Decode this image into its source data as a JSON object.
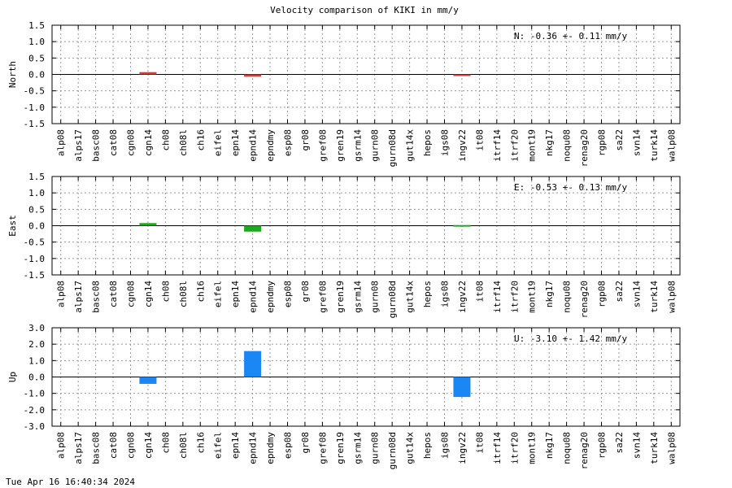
{
  "chart_data": [
    {
      "type": "bar",
      "title": "Velocity comparison of KIKI in mm/y",
      "ylabel": "North",
      "ylim": [
        -1.5,
        1.5
      ],
      "yticks": [
        "1.5",
        "1.0",
        "0.5",
        "0.0",
        "-0.5",
        "-1.0",
        "-1.5"
      ],
      "grid": true,
      "color": "#d43f3a",
      "annotation": "N:  -0.36 +-  0.11 mm/y",
      "categories": [
        "alp08",
        "alps17",
        "basc08",
        "cat08",
        "cgn08",
        "cgn14",
        "ch08",
        "ch08l",
        "ch16",
        "eifel",
        "epn14",
        "epnd14",
        "epndmy",
        "esp08",
        "gr08",
        "gref08",
        "gren19",
        "gsrm14",
        "gurn08",
        "gurn08d",
        "gut14x",
        "hepos",
        "igs08",
        "ingv22",
        "it08",
        "itrf14",
        "itrf20",
        "mont19",
        "nkg17",
        "noqu08",
        "renag20",
        "rgp08",
        "sa22",
        "svn14",
        "turk14",
        "walp08"
      ],
      "values": [
        null,
        null,
        null,
        null,
        null,
        0.07,
        null,
        null,
        null,
        null,
        null,
        -0.07,
        null,
        null,
        null,
        null,
        null,
        null,
        null,
        null,
        null,
        null,
        null,
        -0.03,
        null,
        null,
        null,
        null,
        null,
        null,
        null,
        null,
        null,
        null,
        null,
        null
      ]
    },
    {
      "type": "bar",
      "ylabel": "East",
      "ylim": [
        -1.5,
        1.5
      ],
      "yticks": [
        "1.5",
        "1.0",
        "0.5",
        "0.0",
        "-0.5",
        "-1.0",
        "-1.5"
      ],
      "grid": true,
      "color": "#1fa81f",
      "annotation": "E:  -0.53 +-  0.13 mm/y",
      "categories": [
        "alp08",
        "alps17",
        "basc08",
        "cat08",
        "cgn08",
        "cgn14",
        "ch08",
        "ch08l",
        "ch16",
        "eifel",
        "epn14",
        "epnd14",
        "epndmy",
        "esp08",
        "gr08",
        "gref08",
        "gren19",
        "gsrm14",
        "gurn08",
        "gurn08d",
        "gut14x",
        "hepos",
        "igs08",
        "ingv22",
        "it08",
        "itrf14",
        "itrf20",
        "mont19",
        "nkg17",
        "noqu08",
        "renag20",
        "rgp08",
        "sa22",
        "svn14",
        "turk14",
        "walp08"
      ],
      "values": [
        null,
        null,
        null,
        null,
        null,
        0.08,
        null,
        null,
        null,
        null,
        null,
        -0.18,
        null,
        null,
        null,
        null,
        null,
        null,
        null,
        null,
        null,
        null,
        null,
        0.02,
        null,
        null,
        null,
        null,
        null,
        null,
        null,
        null,
        null,
        null,
        null,
        null
      ]
    },
    {
      "type": "bar",
      "ylabel": "Up",
      "ylim": [
        -3.0,
        3.0
      ],
      "yticks": [
        "3.0",
        "2.0",
        "1.0",
        "0.0",
        "-1.0",
        "-2.0",
        "-3.0"
      ],
      "grid": true,
      "color": "#1a87f5",
      "annotation": "U:  -3.10 +-  1.42 mm/y",
      "categories": [
        "alp08",
        "alps17",
        "basc08",
        "cat08",
        "cgn08",
        "cgn14",
        "ch08",
        "ch08l",
        "ch16",
        "eifel",
        "epn14",
        "epnd14",
        "epndmy",
        "esp08",
        "gr08",
        "gref08",
        "gren19",
        "gsrm14",
        "gurn08",
        "gurn08d",
        "gut14x",
        "hepos",
        "igs08",
        "ingv22",
        "it08",
        "itrf14",
        "itrf20",
        "mont19",
        "nkg17",
        "noqu08",
        "renag20",
        "rgp08",
        "sa22",
        "svn14",
        "turk14",
        "walp08"
      ],
      "values": [
        null,
        null,
        null,
        null,
        null,
        -0.42,
        null,
        null,
        null,
        null,
        null,
        1.58,
        null,
        null,
        null,
        null,
        null,
        null,
        null,
        null,
        null,
        null,
        null,
        -1.22,
        null,
        null,
        null,
        null,
        null,
        null,
        null,
        null,
        null,
        null,
        null,
        null
      ]
    }
  ],
  "footer": {
    "timestamp": "Tue Apr 16 16:40:34 2024"
  }
}
